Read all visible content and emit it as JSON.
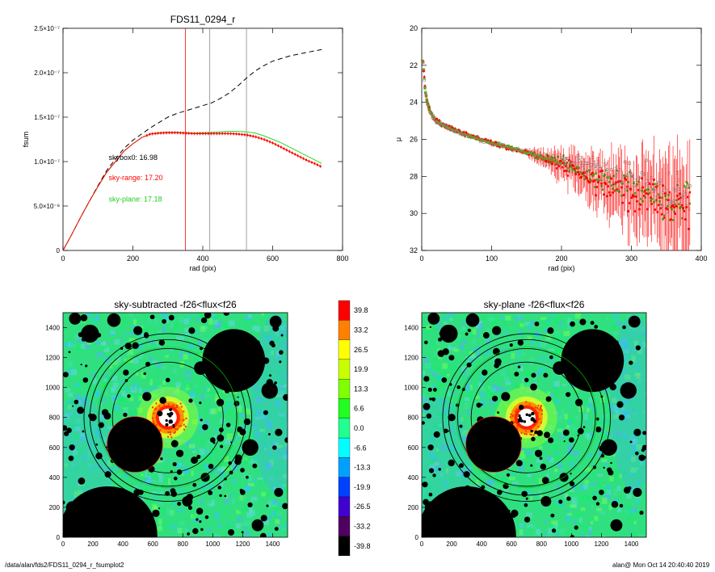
{
  "footer": {
    "path": "/data/alan/fds2/FDS11_0294_r_fsumplot2",
    "stamp": "alan@  Mon Oct 14 20:40:40 2019"
  },
  "colors": {
    "total": "#000000",
    "sky_range": "#ff0000",
    "sky_plane": "#22dd22",
    "marker_range": "#ff0000",
    "marker_box": "#888888"
  },
  "chart_data": [
    {
      "type": "line",
      "title": "FDS11_0294_r",
      "xlabel": "rad (pix)",
      "ylabel": "fsum",
      "xlim": [
        0,
        800
      ],
      "ylim": [
        0,
        2.5e-07
      ],
      "xticks": [
        "0",
        "200",
        "400",
        "600",
        "800"
      ],
      "yticks": [
        {
          "label": "0",
          "v": 0
        },
        {
          "label": "5.0×10⁻⁸",
          "v": 5e-08
        },
        {
          "label": "1.0×10⁻⁷",
          "v": 1e-07
        },
        {
          "label": "1.5×10⁻⁷",
          "v": 1.5e-07
        },
        {
          "label": "2.0×10⁻⁷",
          "v": 2e-07
        },
        {
          "label": "2.5×10⁻⁷",
          "v": 2.5e-07
        }
      ],
      "vlines": [
        {
          "x": 350,
          "color": "#ff0000"
        },
        {
          "x": 420,
          "color": "#888888"
        },
        {
          "x": 525,
          "color": "#888888"
        }
      ],
      "annotations": [
        {
          "text": "skybox0: 16.98",
          "x": 200,
          "y": 1.02e-07,
          "color": "#000000"
        },
        {
          "text": "sky-range: 17.20",
          "x": 200,
          "y": 7.9e-08,
          "color": "#ff0000"
        },
        {
          "text": "sky-plane: 17.18",
          "x": 200,
          "y": 5.5e-08,
          "color": "#22cc22"
        }
      ],
      "series": [
        {
          "color": "#000000",
          "style": "dashed",
          "x": [
            0,
            25,
            50,
            75,
            100,
            125,
            150,
            175,
            200,
            225,
            250,
            275,
            300,
            325,
            350,
            375,
            400,
            425,
            450,
            475,
            500,
            525,
            550,
            575,
            600,
            625,
            650,
            675,
            700,
            725,
            740
          ],
          "y": [
            0,
            1.8e-08,
            3.7e-08,
            5.5e-08,
            7.3e-08,
            9e-08,
            1.03e-07,
            1.15e-07,
            1.24e-07,
            1.31e-07,
            1.38e-07,
            1.44e-07,
            1.5e-07,
            1.54e-07,
            1.57e-07,
            1.6e-07,
            1.63e-07,
            1.66e-07,
            1.71e-07,
            1.77e-07,
            1.85e-07,
            1.94e-07,
            2.02e-07,
            2.08e-07,
            2.13e-07,
            2.16e-07,
            2.19e-07,
            2.21e-07,
            2.23e-07,
            2.25e-07,
            2.26e-07
          ]
        },
        {
          "color": "#22dd22",
          "style": "solid",
          "x": [
            0,
            25,
            50,
            75,
            100,
            125,
            150,
            175,
            200,
            225,
            250,
            275,
            300,
            325,
            350,
            375,
            400,
            425,
            450,
            475,
            500,
            525,
            550,
            575,
            600,
            625,
            650,
            675,
            700,
            725,
            740
          ],
          "y": [
            0,
            1.8e-08,
            3.7e-08,
            5.5e-08,
            7.2e-08,
            8.8e-08,
            1e-07,
            1.12e-07,
            1.2e-07,
            1.27e-07,
            1.31e-07,
            1.325e-07,
            1.33e-07,
            1.33e-07,
            1.325e-07,
            1.32e-07,
            1.325e-07,
            1.33e-07,
            1.335e-07,
            1.34e-07,
            1.34e-07,
            1.335e-07,
            1.32e-07,
            1.29e-07,
            1.25e-07,
            1.21e-07,
            1.16e-07,
            1.11e-07,
            1.06e-07,
            1.01e-07,
            9.8e-08
          ]
        },
        {
          "color": "#ff0000",
          "style": "solid",
          "markers": true,
          "x": [
            0,
            25,
            50,
            75,
            100,
            125,
            150,
            175,
            200,
            225,
            250,
            275,
            300,
            325,
            350,
            375,
            400,
            425,
            450,
            475,
            500,
            525,
            550,
            575,
            600,
            625,
            650,
            675,
            700,
            725,
            740
          ],
          "y": [
            0,
            1.8e-08,
            3.7e-08,
            5.5e-08,
            7.2e-08,
            8.8e-08,
            1e-07,
            1.12e-07,
            1.2e-07,
            1.27e-07,
            1.31e-07,
            1.32e-07,
            1.325e-07,
            1.325e-07,
            1.32e-07,
            1.315e-07,
            1.315e-07,
            1.315e-07,
            1.315e-07,
            1.315e-07,
            1.31e-07,
            1.3e-07,
            1.28e-07,
            1.25e-07,
            1.21e-07,
            1.16e-07,
            1.11e-07,
            1.06e-07,
            1.01e-07,
            9.7e-08,
            9.4e-08
          ]
        }
      ]
    },
    {
      "type": "scatter",
      "title": "",
      "xlabel": "rad (pix)",
      "ylabel": "μ",
      "xlim": [
        0,
        400
      ],
      "ylim": [
        32,
        20
      ],
      "xticks": [
        "0",
        "100",
        "200",
        "300",
        "400"
      ],
      "yticks": [
        "20",
        "22",
        "24",
        "26",
        "28",
        "30",
        "32"
      ],
      "profile": {
        "r": [
          2,
          5,
          8,
          12,
          20,
          35,
          60,
          100,
          150,
          200,
          250,
          300,
          350,
          380
        ],
        "mu": [
          21.8,
          23.4,
          24.0,
          24.5,
          25.0,
          25.3,
          25.7,
          26.2,
          26.7,
          27.3,
          28.0,
          28.7,
          29.2,
          29.6
        ]
      },
      "series": [
        {
          "name": "",
          "color": "#888888",
          "marker": "open-square"
        },
        {
          "name": "",
          "color": "#ff0000",
          "marker": "filled-square"
        },
        {
          "name": "",
          "color": "#22cc22",
          "marker": "filled-square"
        }
      ]
    },
    {
      "type": "heatmap",
      "title": "sky-subtracted -f26<flux<f26",
      "xlim": [
        0,
        1500
      ],
      "ylim": [
        0,
        1500
      ],
      "xticks": [
        "0",
        "200",
        "400",
        "600",
        "800",
        "1000",
        "1200",
        "1400"
      ],
      "yticks": [
        "0",
        "200",
        "400",
        "600",
        "800",
        "1000",
        "1200",
        "1400"
      ]
    },
    {
      "type": "heatmap",
      "title": "sky-plane -f26<flux<f26",
      "xlim": [
        0,
        1500
      ],
      "ylim": [
        0,
        1500
      ],
      "xticks": [
        "0",
        "200",
        "400",
        "600",
        "800",
        "1000",
        "1200",
        "1400"
      ],
      "yticks": [
        "0",
        "200",
        "400",
        "600",
        "800",
        "1000",
        "1200",
        "1400"
      ]
    }
  ],
  "image_features": {
    "center": [
      700,
      800
    ],
    "rings": [
      {
        "r": 370,
        "color": "#000000"
      },
      {
        "r": 460,
        "color": "#000000"
      },
      {
        "r": 520,
        "color": "#000000"
      },
      {
        "r": 560,
        "color": "#000000"
      }
    ],
    "masks": [
      [
        1140,
        1180,
        210
      ],
      [
        480,
        620,
        185
      ],
      [
        300,
        10,
        330
      ],
      [
        80,
        1460,
        40
      ],
      [
        180,
        1360,
        60
      ],
      [
        340,
        1450,
        45
      ],
      [
        500,
        1380,
        30
      ],
      [
        1420,
        1440,
        40
      ],
      [
        1380,
        980,
        55
      ],
      [
        920,
        1130,
        45
      ],
      [
        1250,
        600,
        55
      ],
      [
        1100,
        1120,
        30
      ],
      [
        830,
        240,
        35
      ],
      [
        1300,
        80,
        40
      ],
      [
        60,
        200,
        40
      ],
      [
        950,
        400,
        30
      ],
      [
        560,
        940,
        30
      ],
      [
        1050,
        900,
        25
      ],
      [
        660,
        1300,
        20
      ],
      [
        200,
        800,
        25
      ],
      [
        1440,
        300,
        30
      ],
      [
        420,
        1100,
        20
      ],
      [
        780,
        560,
        25
      ],
      [
        1180,
        720,
        20
      ],
      [
        620,
        160,
        25
      ],
      [
        1000,
        650,
        18
      ],
      [
        300,
        420,
        22
      ],
      [
        1440,
        700,
        25
      ],
      [
        860,
        1380,
        22
      ],
      [
        150,
        1050,
        18
      ],
      [
        520,
        300,
        18
      ],
      [
        700,
        1050,
        15
      ],
      [
        1200,
        300,
        18
      ],
      [
        60,
        600,
        20
      ],
      [
        1300,
        1300,
        15
      ]
    ]
  },
  "colorbar": {
    "labels": [
      "39.8",
      "33.2",
      "26.5",
      "19.9",
      "13.3",
      "6.6",
      "0.0",
      "-6.6",
      "-13.3",
      "-19.9",
      "-26.5",
      "-33.2",
      "-39.8"
    ],
    "colors": [
      "#ff0000",
      "#ff8000",
      "#ffff00",
      "#c8ff00",
      "#80ff00",
      "#20ff20",
      "#20ff90",
      "#00ffff",
      "#00a0ff",
      "#0040ff",
      "#4000d0",
      "#500060",
      "#000000"
    ]
  }
}
